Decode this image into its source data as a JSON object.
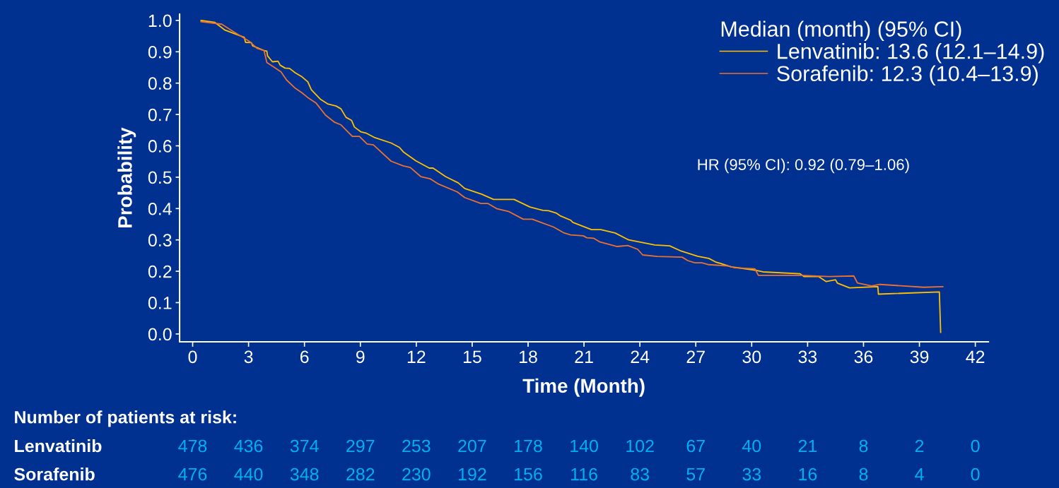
{
  "chart_data": {
    "type": "line",
    "xlabel": "Time (Month)",
    "ylabel": "Probability",
    "xlim": [
      -0.7,
      42.7
    ],
    "ylim": [
      -0.025,
      1.02
    ],
    "xticks": [
      0,
      3,
      6,
      9,
      12,
      15,
      18,
      21,
      24,
      27,
      30,
      33,
      36,
      39,
      42
    ],
    "yticks": [
      {
        "value": 0,
        "label": "0.0"
      },
      0.1,
      0.2,
      0.3,
      0.4,
      0.5,
      0.6,
      0.7,
      0.8,
      0.9,
      {
        "value": 1,
        "label": "1.0"
      }
    ],
    "grid": false,
    "legend": "top right",
    "legend_title": "Median (month) (95% CI)",
    "line_style": "solid",
    "marker": "none",
    "series": [
      {
        "name": "Lenvatinib: 13.6 (12.1–14.9)",
        "color": "#ffc000",
        "x": [
          0.45,
          1.18,
          1.74,
          2.77,
          2.84,
          3.15,
          3.22,
          3.83,
          3.98,
          4.02,
          4.28,
          4.58,
          4.7,
          4.96,
          5.2,
          5.5,
          5.87,
          6.18,
          6.37,
          6.87,
          7.24,
          7.7,
          7.96,
          8.23,
          8.53,
          8.68,
          9.02,
          9.33,
          9.78,
          10.65,
          11.1,
          11.3,
          11.98,
          12.7,
          12.9,
          13.57,
          14.25,
          14.6,
          15.5,
          16.15,
          17.25,
          18.1,
          18.8,
          19.1,
          19.5,
          19.75,
          20.28,
          20.4,
          21.4,
          21.9,
          22.67,
          23.4,
          24.8,
          25.6,
          26.15,
          27.1,
          27.7,
          28.05,
          28.9,
          30.25,
          30.6,
          32.6,
          32.8,
          33.6,
          34.0,
          34.5,
          34.6,
          35.25,
          36.77,
          36.8,
          40.07,
          40.14
        ],
        "values": [
          1.0,
          0.994,
          0.969,
          0.946,
          0.93,
          0.929,
          0.919,
          0.904,
          0.902,
          0.887,
          0.868,
          0.87,
          0.857,
          0.848,
          0.847,
          0.833,
          0.82,
          0.804,
          0.779,
          0.748,
          0.734,
          0.727,
          0.718,
          0.691,
          0.681,
          0.66,
          0.645,
          0.64,
          0.626,
          0.609,
          0.595,
          0.581,
          0.552,
          0.529,
          0.529,
          0.502,
          0.482,
          0.464,
          0.446,
          0.429,
          0.429,
          0.405,
          0.394,
          0.393,
          0.386,
          0.376,
          0.363,
          0.356,
          0.333,
          0.333,
          0.322,
          0.3,
          0.284,
          0.281,
          0.266,
          0.248,
          0.241,
          0.23,
          0.214,
          0.203,
          0.198,
          0.192,
          0.183,
          0.183,
          0.167,
          0.173,
          0.162,
          0.147,
          0.151,
          0.127,
          0.134,
          0.005
        ]
      },
      {
        "name": "Sorafenib: 12.3 (10.4–13.9)",
        "color": "#e97132",
        "x": [
          0.45,
          1.56,
          2.2,
          3.07,
          3.45,
          3.83,
          3.98,
          4.36,
          4.74,
          5.04,
          5.5,
          5.87,
          6.18,
          6.63,
          7.13,
          7.62,
          7.96,
          8.57,
          8.95,
          9.36,
          9.7,
          10.65,
          11.3,
          11.68,
          12.24,
          12.74,
          13.2,
          14.2,
          14.6,
          15.47,
          15.85,
          16.34,
          16.98,
          17.74,
          18.23,
          19.37,
          19.94,
          20.28,
          20.96,
          21.15,
          21.53,
          21.83,
          22.78,
          23.35,
          23.88,
          24.15,
          24.94,
          26.27,
          26.57,
          26.95,
          27.33,
          27.7,
          28.73,
          29.1,
          30.17,
          30.36,
          32.64,
          34.15,
          35.48,
          35.67,
          36.43,
          36.88,
          39.23,
          40.26
        ],
        "values": [
          0.996,
          0.988,
          0.964,
          0.932,
          0.911,
          0.904,
          0.866,
          0.851,
          0.836,
          0.81,
          0.784,
          0.769,
          0.754,
          0.736,
          0.698,
          0.675,
          0.667,
          0.63,
          0.63,
          0.606,
          0.603,
          0.551,
          0.536,
          0.531,
          0.502,
          0.495,
          0.478,
          0.453,
          0.435,
          0.416,
          0.416,
          0.399,
          0.39,
          0.366,
          0.366,
          0.341,
          0.322,
          0.316,
          0.313,
          0.307,
          0.305,
          0.294,
          0.279,
          0.282,
          0.27,
          0.252,
          0.247,
          0.245,
          0.234,
          0.227,
          0.227,
          0.221,
          0.217,
          0.211,
          0.208,
          0.187,
          0.187,
          0.183,
          0.185,
          0.163,
          0.153,
          0.158,
          0.149,
          0.151
        ]
      }
    ],
    "annotations": [
      "HR (95% CI): 0.92 (0.79–1.06)",
      "Number of patients at risk:",
      "Lenvatinib",
      "478",
      "436",
      "374",
      "297",
      "253",
      "207",
      "178",
      "140",
      "102",
      "67",
      "40",
      "21",
      "8",
      "2",
      "0",
      "Sorafenib",
      "476",
      "440",
      "348",
      "282",
      "230",
      "192",
      "156",
      "116",
      "83",
      "57",
      "33",
      "16",
      "8",
      "4",
      "0"
    ]
  }
}
